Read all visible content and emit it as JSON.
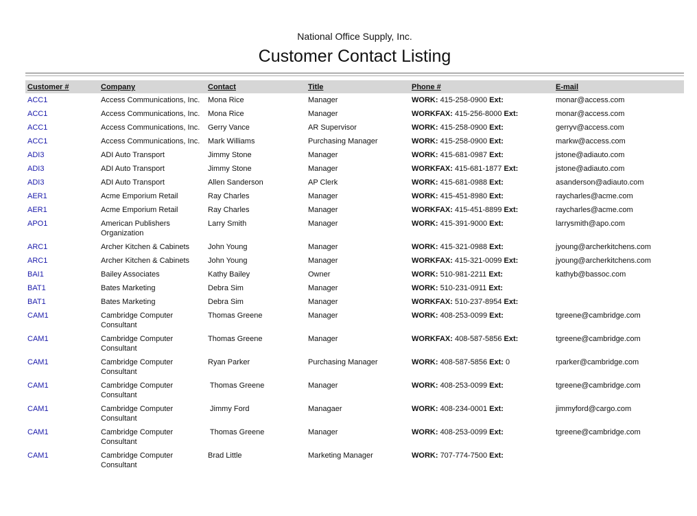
{
  "header": {
    "company": "National Office Supply, Inc.",
    "title": "Customer Contact Listing"
  },
  "columns": [
    "Customer #",
    "Company",
    "Contact",
    "Title",
    "Phone #",
    "E-mail"
  ],
  "ext_label": "Ext:",
  "rows": [
    {
      "cust": "ACC1",
      "company": "Access Communications, Inc.",
      "contact": "Mona Rice",
      "title": "Manager",
      "ptype": "WORK:",
      "phone": "415-258-0900",
      "ext": "",
      "email": "monar@access.com"
    },
    {
      "cust": "ACC1",
      "company": "Access Communications, Inc.",
      "contact": "Mona Rice",
      "title": "Manager",
      "ptype": "WORKFAX:",
      "phone": "415-256-8000",
      "ext": "",
      "email": "monar@access.com"
    },
    {
      "cust": "ACC1",
      "company": "Access Communications, Inc.",
      "contact": "Gerry Vance",
      "title": "AR Supervisor",
      "ptype": "WORK:",
      "phone": "415-258-0900",
      "ext": "",
      "email": "gerryv@access.com"
    },
    {
      "cust": "ACC1",
      "company": "Access Communications, Inc.",
      "contact": "Mark Williams",
      "title": "Purchasing Manager",
      "ptype": "WORK:",
      "phone": "415-258-0900",
      "ext": "",
      "email": "markw@access.com"
    },
    {
      "cust": "ADI3",
      "company": "ADI Auto Transport",
      "contact": "Jimmy Stone",
      "title": "Manager",
      "ptype": "WORK:",
      "phone": "415-681-0987",
      "ext": "",
      "email": "jstone@adiauto.com"
    },
    {
      "cust": "ADI3",
      "company": "ADI Auto Transport",
      "contact": "Jimmy Stone",
      "title": "Manager",
      "ptype": "WORKFAX:",
      "phone": "415-681-1877",
      "ext": "",
      "email": "jstone@adiauto.com"
    },
    {
      "cust": "ADI3",
      "company": "ADI Auto Transport",
      "contact": "Allen Sanderson",
      "title": "AP Clerk",
      "ptype": "WORK:",
      "phone": "415-681-0988",
      "ext": "",
      "email": "asanderson@adiauto.com"
    },
    {
      "cust": "AER1",
      "company": "Acme Emporium Retail",
      "contact": "Ray Charles",
      "title": "Manager",
      "ptype": "WORK:",
      "phone": "415-451-8980",
      "ext": "",
      "email": "raycharles@acme.com"
    },
    {
      "cust": "AER1",
      "company": "Acme Emporium Retail",
      "contact": "Ray Charles",
      "title": "Manager",
      "ptype": "WORKFAX:",
      "phone": "415-451-8899",
      "ext": "",
      "email": "raycharles@acme.com"
    },
    {
      "cust": "APO1",
      "company": "American Publishers Organization",
      "contact": "Larry Smith",
      "title": "Manager",
      "ptype": "WORK:",
      "phone": "415-391-9000",
      "ext": "",
      "email": "larrysmith@apo.com"
    },
    {
      "cust": "ARC1",
      "company": "Archer Kitchen & Cabinets",
      "contact": "John Young",
      "title": "Manager",
      "ptype": "WORK:",
      "phone": "415-321-0988",
      "ext": "",
      "email": "jyoung@archerkitchens.com"
    },
    {
      "cust": "ARC1",
      "company": "Archer Kitchen & Cabinets",
      "contact": "John Young",
      "title": "Manager",
      "ptype": "WORKFAX:",
      "phone": "415-321-0099",
      "ext": "",
      "email": "jyoung@archerkitchens.com"
    },
    {
      "cust": "BAI1",
      "company": "Bailey Associates",
      "contact": "Kathy Bailey",
      "title": "Owner",
      "ptype": "WORK:",
      "phone": "510-981-2211",
      "ext": "",
      "email": "kathyb@bassoc.com"
    },
    {
      "cust": "BAT1",
      "company": "Bates Marketing",
      "contact": "Debra Sim",
      "title": "Manager",
      "ptype": "WORK:",
      "phone": "510-231-0911",
      "ext": "",
      "email": ""
    },
    {
      "cust": "BAT1",
      "company": "Bates Marketing",
      "contact": "Debra Sim",
      "title": "Manager",
      "ptype": "WORKFAX:",
      "phone": "510-237-8954",
      "ext": "",
      "email": ""
    },
    {
      "cust": "CAM1",
      "company": "Cambridge Computer Consultant",
      "contact": "Thomas Greene",
      "title": "Manager",
      "ptype": "WORK:",
      "phone": "408-253-0099",
      "ext": "",
      "email": "tgreene@cambridge.com"
    },
    {
      "cust": "CAM1",
      "company": "Cambridge Computer Consultant",
      "contact": "Thomas Greene",
      "title": "Manager",
      "ptype": "WORKFAX:",
      "phone": "408-587-5856",
      "ext": "",
      "email": "tgreene@cambridge.com"
    },
    {
      "cust": "CAM1",
      "company": "Cambridge Computer Consultant",
      "contact": "Ryan Parker",
      "title": "Purchasing Manager",
      "ptype": "WORK:",
      "phone": "408-587-5856",
      "ext": "0",
      "email": "rparker@cambridge.com"
    },
    {
      "cust": "CAM1",
      "company": "Cambridge Computer Consultant",
      "contact": " Thomas Greene",
      "title": "Manager",
      "ptype": "WORK:",
      "phone": "408-253-0099",
      "ext": "",
      "email": "tgreene@cambridge.com"
    },
    {
      "cust": "CAM1",
      "company": "Cambridge Computer Consultant",
      "contact": " Jimmy Ford",
      "title": "Managaer",
      "ptype": "WORK:",
      "phone": "408-234-0001",
      "ext": "",
      "email": "jimmyford@cargo.com"
    },
    {
      "cust": "CAM1",
      "company": "Cambridge Computer Consultant",
      "contact": " Thomas Greene",
      "title": "Manager",
      "ptype": "WORK:",
      "phone": "408-253-0099",
      "ext": "",
      "email": "tgreene@cambridge.com"
    },
    {
      "cust": "CAM1",
      "company": "Cambridge Computer Consultant",
      "contact": "Brad Little",
      "title": "Marketing Manager",
      "ptype": "WORK:",
      "phone": "707-774-7500",
      "ext": "",
      "email": ""
    }
  ]
}
